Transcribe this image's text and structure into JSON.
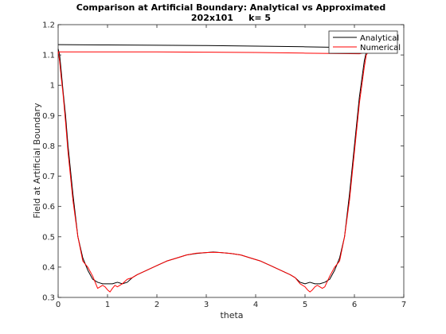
{
  "chart_data": {
    "type": "line",
    "title": "Comparison at Artificial Boundary: Analytical vs Approximated",
    "subtitle": "202x101     k= 5",
    "xlabel": "theta",
    "ylabel": "Field at Artificial Boundary",
    "xlim": [
      0,
      7
    ],
    "ylim": [
      0.3,
      1.2
    ],
    "xticks": [
      "0",
      "1",
      "2",
      "3",
      "4",
      "5",
      "6",
      "7"
    ],
    "yticks": [
      "0.3",
      "0.4",
      "0.5",
      "0.6",
      "0.7",
      "0.8",
      "0.9",
      "1",
      "1.1",
      "1.2"
    ],
    "grid": false,
    "legend_position": "top-right",
    "series": [
      {
        "name": "Analytical",
        "color": "#000000",
        "x": [
          0,
          0.03,
          0.06,
          0.1,
          0.15,
          0.2,
          0.3,
          0.4,
          0.5,
          0.6,
          0.7,
          0.8,
          0.9,
          1.0,
          1.1,
          1.2,
          1.3,
          1.4,
          1.5,
          1.6,
          1.8,
          2.0,
          2.2,
          2.4,
          2.6,
          2.8,
          3.0,
          3.14,
          3.3,
          3.5,
          3.7,
          3.9,
          4.1,
          4.3,
          4.5,
          4.7,
          4.8,
          4.9,
          5.0,
          5.1,
          5.2,
          5.3,
          5.4,
          5.5,
          5.6,
          5.7,
          5.8,
          5.9,
          6.0,
          6.1,
          6.15,
          6.2,
          6.24,
          6.283,
          6.1,
          5.0,
          4.0,
          3.0,
          2.0,
          1.0,
          0.0
        ],
        "y": [
          1.12,
          1.1,
          1.05,
          0.98,
          0.9,
          0.8,
          0.64,
          0.5,
          0.43,
          0.39,
          0.36,
          0.35,
          0.345,
          0.345,
          0.345,
          0.35,
          0.345,
          0.35,
          0.365,
          0.375,
          0.39,
          0.405,
          0.42,
          0.43,
          0.44,
          0.445,
          0.448,
          0.45,
          0.448,
          0.445,
          0.44,
          0.43,
          0.42,
          0.405,
          0.39,
          0.375,
          0.365,
          0.35,
          0.345,
          0.35,
          0.345,
          0.345,
          0.35,
          0.36,
          0.39,
          0.43,
          0.5,
          0.64,
          0.8,
          0.96,
          1.02,
          1.08,
          1.11,
          1.12,
          1.124,
          1.127,
          1.129,
          1.131,
          1.132,
          1.133,
          1.134
        ]
      },
      {
        "name": "Numerical",
        "color": "#ff0000",
        "x": [
          0,
          0.03,
          0.06,
          0.1,
          0.15,
          0.2,
          0.3,
          0.4,
          0.5,
          0.6,
          0.7,
          0.8,
          0.85,
          0.9,
          0.95,
          1.0,
          1.05,
          1.1,
          1.15,
          1.2,
          1.3,
          1.4,
          1.5,
          1.6,
          1.8,
          2.0,
          2.2,
          2.4,
          2.6,
          2.8,
          3.0,
          3.14,
          3.3,
          3.5,
          3.7,
          3.9,
          4.1,
          4.3,
          4.5,
          4.7,
          4.8,
          4.9,
          5.0,
          5.05,
          5.1,
          5.15,
          5.2,
          5.25,
          5.3,
          5.35,
          5.4,
          5.5,
          5.6,
          5.7,
          5.8,
          5.9,
          6.0,
          6.1,
          6.15,
          6.2,
          6.24,
          6.283,
          6.1,
          5.0,
          4.0,
          3.0,
          2.0,
          1.0,
          0.0
        ],
        "y": [
          1.11,
          1.08,
          1.03,
          0.97,
          0.88,
          0.78,
          0.62,
          0.5,
          0.42,
          0.4,
          0.37,
          0.33,
          0.335,
          0.34,
          0.335,
          0.325,
          0.318,
          0.33,
          0.34,
          0.335,
          0.345,
          0.36,
          0.365,
          0.375,
          0.39,
          0.405,
          0.42,
          0.43,
          0.44,
          0.446,
          0.448,
          0.449,
          0.448,
          0.445,
          0.44,
          0.43,
          0.42,
          0.405,
          0.39,
          0.375,
          0.365,
          0.345,
          0.335,
          0.325,
          0.318,
          0.325,
          0.335,
          0.34,
          0.335,
          0.33,
          0.335,
          0.37,
          0.4,
          0.42,
          0.5,
          0.62,
          0.78,
          0.94,
          1.0,
          1.06,
          1.1,
          1.11,
          1.104,
          1.106,
          1.108,
          1.109,
          1.11,
          1.11,
          1.11
        ]
      }
    ]
  }
}
